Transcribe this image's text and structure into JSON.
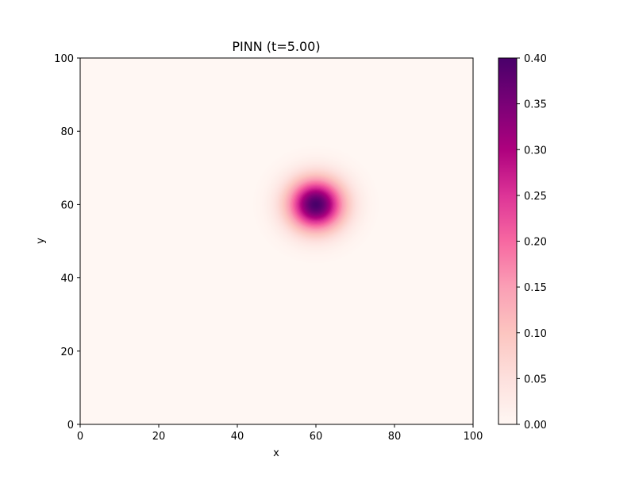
{
  "chart_data": {
    "type": "heatmap",
    "title": "PINN (t=5.00)",
    "xlabel": "x",
    "ylabel": "y",
    "xlim": [
      0,
      100
    ],
    "ylim": [
      0,
      100
    ],
    "x_ticks": [
      0,
      20,
      40,
      60,
      80,
      100
    ],
    "y_ticks": [
      0,
      20,
      40,
      60,
      80,
      100
    ],
    "field": {
      "shape": "gaussian",
      "center_x": 60,
      "center_y": 60,
      "sigma": 5,
      "peak": 0.4,
      "background": 0.0
    },
    "colorbar": {
      "colormap": "RdPu",
      "min": 0.0,
      "max": 0.4,
      "ticks": [
        0.0,
        0.05,
        0.1,
        0.15,
        0.2,
        0.25,
        0.3,
        0.35,
        0.4
      ],
      "tick_labels": [
        "0.00",
        "0.05",
        "0.10",
        "0.15",
        "0.20",
        "0.25",
        "0.30",
        "0.35",
        "0.40"
      ],
      "stops": [
        "#fff7f3",
        "#fde0dd",
        "#fcc5c0",
        "#fa9fb5",
        "#f768a1",
        "#dd3497",
        "#ae017e",
        "#7a0177",
        "#49006a"
      ]
    },
    "grid": false
  }
}
